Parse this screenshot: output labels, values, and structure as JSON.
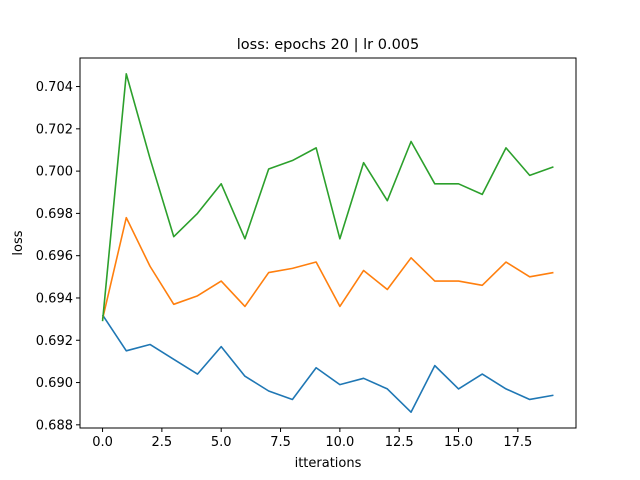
{
  "chart_data": {
    "type": "line",
    "title": "loss: epochs 20 | lr 0.005",
    "xlabel": "itterations",
    "ylabel": "loss",
    "xlim": [
      -0.95,
      19.95
    ],
    "ylim": [
      0.68785,
      0.70535
    ],
    "xticks": [
      0,
      2.5,
      5,
      7.5,
      10,
      12.5,
      15,
      17.5
    ],
    "xtick_labels": [
      "0.0",
      "2.5",
      "5.0",
      "7.5",
      "10.0",
      "12.5",
      "15.0",
      "17.5"
    ],
    "yticks": [
      0.688,
      0.69,
      0.692,
      0.694,
      0.696,
      0.698,
      0.7,
      0.702,
      0.704
    ],
    "ytick_labels": [
      "0.688",
      "0.690",
      "0.692",
      "0.694",
      "0.696",
      "0.698",
      "0.700",
      "0.702",
      "0.704"
    ],
    "grid": false,
    "x": [
      0,
      1,
      2,
      3,
      4,
      5,
      6,
      7,
      8,
      9,
      10,
      11,
      12,
      13,
      14,
      15,
      16,
      17,
      18,
      19
    ],
    "series": [
      {
        "color": "#1f77b4",
        "values": [
          0.6932,
          0.6915,
          0.6918,
          0.6911,
          0.6904,
          0.6917,
          0.6903,
          0.6896,
          0.6892,
          0.6907,
          0.6899,
          0.6902,
          0.6897,
          0.6886,
          0.6908,
          0.6897,
          0.6904,
          0.6897,
          0.6892,
          0.6894
        ]
      },
      {
        "color": "#ff7f0e",
        "values": [
          0.693,
          0.6978,
          0.6955,
          0.6937,
          0.6941,
          0.6948,
          0.6936,
          0.6952,
          0.6954,
          0.6957,
          0.6936,
          0.6953,
          0.6944,
          0.6959,
          0.6948,
          0.6948,
          0.6946,
          0.6957,
          0.695,
          0.6952
        ]
      },
      {
        "color": "#2ca02c",
        "values": [
          0.6929,
          0.7046,
          0.7006,
          0.6969,
          0.698,
          0.6994,
          0.6968,
          0.7001,
          0.7005,
          0.7011,
          0.6968,
          0.7004,
          0.6986,
          0.7014,
          0.6994,
          0.6994,
          0.6989,
          0.7011,
          0.6998,
          0.7002
        ]
      }
    ]
  }
}
